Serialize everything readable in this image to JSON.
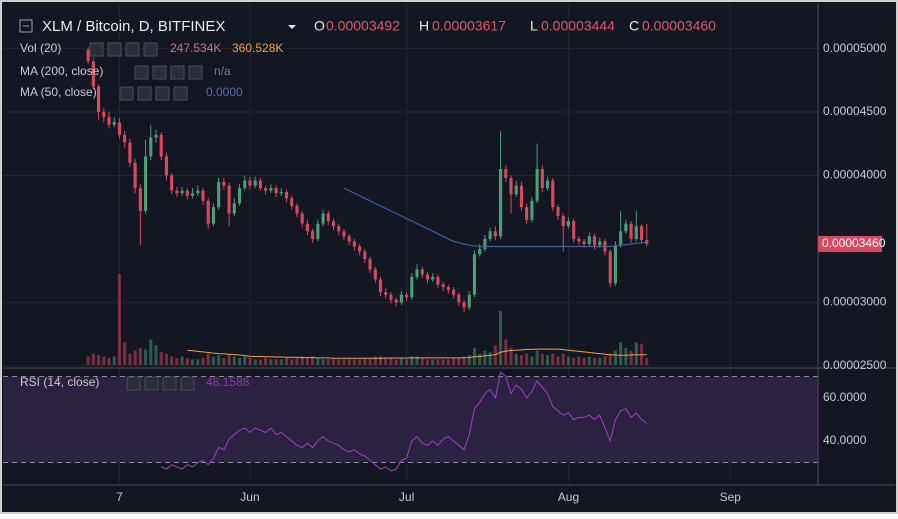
{
  "header": {
    "ohlc": [
      {
        "label": "O",
        "value": "0.00003492"
      },
      {
        "label": "H",
        "value": "0.00003617"
      },
      {
        "label": "L",
        "value": "0.00003444"
      },
      {
        "label": "C",
        "value": "0.00003460"
      }
    ]
  },
  "chart_data": [
    {
      "type": "candlestick",
      "title": "XLM / Bitcoin, D, BITFINEX",
      "up_color": "#4a9e78",
      "down_color": "#d9485e",
      "xlim": [
        -14.2,
        139.8
      ],
      "xticks": [
        {
          "value": 6,
          "label": "7"
        },
        {
          "value": 31,
          "label": "Jun"
        },
        {
          "value": 61,
          "label": "Jul"
        },
        {
          "value": 92,
          "label": "Aug"
        },
        {
          "value": 123,
          "label": "Sep"
        }
      ],
      "ylim": [
        2.49e-05,
        5.32e-05
      ],
      "yticks": [
        {
          "value": 5e-05,
          "label": "0.00005000"
        },
        {
          "value": 4.5e-05,
          "label": "0.00004500"
        },
        {
          "value": 4e-05,
          "label": "0.00004000"
        },
        {
          "value": 3e-05,
          "label": "0.00003000"
        },
        {
          "value": 2.5e-05,
          "label": "0.00002500"
        }
      ],
      "last_price_label": "0.00003460",
      "open": [
        4.99e-05,
        4.9e-05,
        4.7e-05,
        4.5e-05,
        4.46e-05,
        4.4e-05,
        4.42e-05,
        4.32e-05,
        4.26e-05,
        4.1e-05,
        3.9e-05,
        3.72e-05,
        4.15e-05,
        4.3e-05,
        4.32e-05,
        4.15e-05,
        4e-05,
        3.88e-05,
        3.86e-05,
        3.88e-05,
        3.84e-05,
        3.86e-05,
        3.88e-05,
        3.8e-05,
        3.62e-05,
        3.75e-05,
        3.95e-05,
        3.92e-05,
        3.7e-05,
        3.78e-05,
        3.9e-05,
        3.96e-05,
        3.92e-05,
        3.96e-05,
        3.9e-05,
        3.88e-05,
        3.9e-05,
        3.86e-05,
        3.87e-05,
        3.82e-05,
        3.76e-05,
        3.7e-05,
        3.62e-05,
        3.56e-05,
        3.5e-05,
        3.62e-05,
        3.7e-05,
        3.64e-05,
        3.6e-05,
        3.56e-05,
        3.52e-05,
        3.48e-05,
        3.44e-05,
        3.4e-05,
        3.34e-05,
        3.26e-05,
        3.18e-05,
        3.08e-05,
        3.06e-05,
        3.02e-05,
        3e-05,
        3.06e-05,
        3.04e-05,
        3.2e-05,
        3.26e-05,
        3.22e-05,
        3.18e-05,
        3.2e-05,
        3.14e-05,
        3.12e-05,
        3.1e-05,
        3.06e-05,
        3e-05,
        2.96e-05,
        3.06e-05,
        3.38e-05,
        3.42e-05,
        3.5e-05,
        3.56e-05,
        3.52e-05,
        4.05e-05,
        3.98e-05,
        3.85e-05,
        3.92e-05,
        3.75e-05,
        3.65e-05,
        3.8e-05,
        4.05e-05,
        3.9e-05,
        3.96e-05,
        3.75e-05,
        3.68e-05,
        3.6e-05,
        3.64e-05,
        3.5e-05,
        3.48e-05,
        3.46e-05,
        3.52e-05,
        3.45e-05,
        3.48e-05,
        3.4e-05,
        3.15e-05,
        3.45e-05,
        3.56e-05,
        3.62e-05,
        3.5e-05,
        3.6e-05,
        3.492e-05
      ],
      "high": [
        5.01e-05,
        4.93e-05,
        4.72e-05,
        4.53e-05,
        4.5e-05,
        4.46e-05,
        4.45e-05,
        4.35e-05,
        4.29e-05,
        4.13e-05,
        3.93e-05,
        4.28e-05,
        4.4e-05,
        4.36e-05,
        4.34e-05,
        4.18e-05,
        4.02e-05,
        3.91e-05,
        3.91e-05,
        3.9e-05,
        3.9e-05,
        3.92e-05,
        3.9e-05,
        3.82e-05,
        3.78e-05,
        3.98e-05,
        3.98e-05,
        3.94e-05,
        3.82e-05,
        3.93e-05,
        4e-05,
        3.99e-05,
        3.99e-05,
        3.98e-05,
        3.92e-05,
        3.93e-05,
        3.92e-05,
        3.9e-05,
        3.89e-05,
        3.84e-05,
        3.78e-05,
        3.72e-05,
        3.65e-05,
        3.58e-05,
        3.65e-05,
        3.73e-05,
        3.72e-05,
        3.66e-05,
        3.62e-05,
        3.58e-05,
        3.54e-05,
        3.5e-05,
        3.46e-05,
        3.42e-05,
        3.36e-05,
        3.28e-05,
        3.2e-05,
        3.11e-05,
        3.08e-05,
        3.04e-05,
        3.09e-05,
        3.08e-05,
        3.23e-05,
        3.3e-05,
        3.28e-05,
        3.24e-05,
        3.23e-05,
        3.22e-05,
        3.16e-05,
        3.14e-05,
        3.12e-05,
        3.08e-05,
        3.02e-05,
        3.09e-05,
        3.41e-05,
        3.46e-05,
        3.53e-05,
        3.59e-05,
        3.6e-05,
        4.35e-05,
        4.08e-05,
        4e-05,
        3.96e-05,
        3.95e-05,
        3.78e-05,
        3.83e-05,
        4.25e-05,
        4.08e-05,
        3.99e-05,
        3.98e-05,
        3.77e-05,
        3.7e-05,
        3.67e-05,
        3.66e-05,
        3.52e-05,
        3.5e-05,
        3.55e-05,
        3.54e-05,
        3.51e-05,
        3.5e-05,
        3.42e-05,
        3.48e-05,
        3.72e-05,
        3.65e-05,
        3.64e-05,
        3.72e-05,
        3.62e-05,
        3.617e-05
      ],
      "low": [
        4.88e-05,
        4.68e-05,
        4.44e-05,
        4.42e-05,
        4.37e-05,
        4.38e-05,
        4.29e-05,
        4.22e-05,
        4.07e-05,
        3.86e-05,
        3.45e-05,
        3.7e-05,
        4.12e-05,
        4.26e-05,
        4.12e-05,
        3.96e-05,
        3.85e-05,
        3.83e-05,
        3.84e-05,
        3.81e-05,
        3.82e-05,
        3.84e-05,
        3.77e-05,
        3.58e-05,
        3.6e-05,
        3.73e-05,
        3.89e-05,
        3.6e-05,
        3.68e-05,
        3.76e-05,
        3.88e-05,
        3.89e-05,
        3.9e-05,
        3.88e-05,
        3.85e-05,
        3.86e-05,
        3.83e-05,
        3.84e-05,
        3.79e-05,
        3.73e-05,
        3.67e-05,
        3.59e-05,
        3.53e-05,
        3.47e-05,
        3.48e-05,
        3.6e-05,
        3.61e-05,
        3.57e-05,
        3.53e-05,
        3.49e-05,
        3.45e-05,
        3.41e-05,
        3.37e-05,
        3.31e-05,
        3.23e-05,
        3.15e-05,
        3.05e-05,
        3.03e-05,
        2.99e-05,
        2.97e-05,
        2.98e-05,
        3.01e-05,
        3.02e-05,
        3.18e-05,
        3.19e-05,
        3.15e-05,
        3.16e-05,
        3.11e-05,
        3.09e-05,
        3.07e-05,
        3.03e-05,
        2.97e-05,
        2.92e-05,
        2.94e-05,
        3.04e-05,
        3.36e-05,
        3.4e-05,
        3.48e-05,
        3.49e-05,
        3.5e-05,
        3.95e-05,
        3.7e-05,
        3.83e-05,
        3.72e-05,
        3.62e-05,
        3.63e-05,
        3.78e-05,
        3.87e-05,
        3.88e-05,
        3.72e-05,
        3.65e-05,
        3.4e-05,
        3.58e-05,
        3.47e-05,
        3.45e-05,
        3.43e-05,
        3.44e-05,
        3.42e-05,
        3.43e-05,
        3.37e-05,
        3.12e-05,
        3.13e-05,
        3.43e-05,
        3.54e-05,
        3.47e-05,
        3.48e-05,
        3.46e-05,
        3.444e-05
      ],
      "close": [
        4.9e-05,
        4.7e-05,
        4.5e-05,
        4.46e-05,
        4.4e-05,
        4.42e-05,
        4.32e-05,
        4.26e-05,
        4.1e-05,
        3.9e-05,
        3.72e-05,
        4.15e-05,
        4.3e-05,
        4.32e-05,
        4.15e-05,
        4e-05,
        3.88e-05,
        3.86e-05,
        3.88e-05,
        3.84e-05,
        3.86e-05,
        3.88e-05,
        3.8e-05,
        3.62e-05,
        3.75e-05,
        3.95e-05,
        3.92e-05,
        3.7e-05,
        3.78e-05,
        3.9e-05,
        3.96e-05,
        3.92e-05,
        3.96e-05,
        3.9e-05,
        3.88e-05,
        3.9e-05,
        3.86e-05,
        3.87e-05,
        3.82e-05,
        3.76e-05,
        3.7e-05,
        3.62e-05,
        3.56e-05,
        3.5e-05,
        3.62e-05,
        3.7e-05,
        3.64e-05,
        3.6e-05,
        3.56e-05,
        3.52e-05,
        3.48e-05,
        3.44e-05,
        3.4e-05,
        3.34e-05,
        3.26e-05,
        3.18e-05,
        3.08e-05,
        3.06e-05,
        3.02e-05,
        3e-05,
        3.06e-05,
        3.04e-05,
        3.2e-05,
        3.26e-05,
        3.22e-05,
        3.18e-05,
        3.2e-05,
        3.14e-05,
        3.12e-05,
        3.1e-05,
        3.06e-05,
        3e-05,
        2.96e-05,
        3.06e-05,
        3.38e-05,
        3.42e-05,
        3.5e-05,
        3.56e-05,
        3.52e-05,
        4.05e-05,
        3.98e-05,
        3.85e-05,
        3.92e-05,
        3.75e-05,
        3.65e-05,
        3.8e-05,
        4.05e-05,
        3.9e-05,
        3.96e-05,
        3.75e-05,
        3.68e-05,
        3.6e-05,
        3.64e-05,
        3.5e-05,
        3.48e-05,
        3.46e-05,
        3.52e-05,
        3.45e-05,
        3.48e-05,
        3.4e-05,
        3.15e-05,
        3.45e-05,
        3.56e-05,
        3.62e-05,
        3.5e-05,
        3.6e-05,
        3.492e-05,
        3.46e-05
      ],
      "indicators": [
        {
          "name": "MA (200, close)",
          "value_label": "n/a",
          "color": "#5d7db8"
        },
        {
          "name": "MA (50, close)",
          "value_label": "0.0000",
          "color": "#3f5ea8",
          "values": [
            null,
            null,
            null,
            null,
            null,
            null,
            null,
            null,
            null,
            null,
            null,
            null,
            null,
            null,
            null,
            null,
            null,
            null,
            null,
            null,
            null,
            null,
            null,
            null,
            null,
            null,
            null,
            null,
            null,
            null,
            null,
            null,
            null,
            null,
            null,
            null,
            null,
            null,
            null,
            null,
            null,
            null,
            null,
            null,
            null,
            null,
            null,
            null,
            null,
            3.9e-05,
            3.88e-05,
            3.86e-05,
            3.84e-05,
            3.82e-05,
            3.8e-05,
            3.78e-05,
            3.76e-05,
            3.74e-05,
            3.72e-05,
            3.7e-05,
            3.68e-05,
            3.66e-05,
            3.64e-05,
            3.62e-05,
            3.6e-05,
            3.58e-05,
            3.56e-05,
            3.54e-05,
            3.52e-05,
            3.5e-05,
            3.48e-05,
            3.47e-05,
            3.46e-05,
            3.45e-05,
            3.445e-05,
            3.44e-05,
            3.44e-05,
            3.44e-05,
            3.44e-05,
            3.44e-05,
            3.44e-05,
            3.44e-05,
            3.44e-05,
            3.44e-05,
            3.44e-05,
            3.44e-05,
            3.44e-05,
            3.44e-05,
            3.44e-05,
            3.44e-05,
            3.44e-05,
            3.44e-05,
            3.44e-05,
            3.44e-05,
            3.44e-05,
            3.44e-05,
            3.44e-05,
            3.44e-05,
            3.44e-05,
            3.44e-05,
            3.44e-05,
            3.445e-05,
            3.45e-05,
            3.455e-05,
            3.46e-05,
            3.465e-05,
            3.47e-05,
            3.475e-05
          ]
        }
      ]
    },
    {
      "type": "volume",
      "name": "Vol (20)",
      "value_label": "247.534K",
      "ma_label": "360.528K",
      "ma_color": "#f0a040",
      "values": [
        300,
        400,
        350,
        300,
        250,
        300,
        3200,
        800,
        400,
        500,
        600,
        550,
        900,
        700,
        450,
        400,
        300,
        250,
        300,
        250,
        200,
        200,
        250,
        400,
        300,
        350,
        250,
        400,
        300,
        250,
        300,
        250,
        200,
        200,
        250,
        200,
        200,
        200,
        250,
        200,
        250,
        300,
        250,
        300,
        250,
        200,
        200,
        200,
        200,
        200,
        200,
        200,
        200,
        250,
        250,
        300,
        300,
        250,
        250,
        200,
        250,
        200,
        300,
        300,
        250,
        200,
        200,
        200,
        200,
        200,
        250,
        250,
        300,
        350,
        600,
        400,
        500,
        450,
        700,
        1900,
        900,
        600,
        400,
        350,
        400,
        300,
        500,
        400,
        350,
        400,
        300,
        400,
        300,
        250,
        300,
        250,
        300,
        250,
        250,
        300,
        400,
        500,
        800,
        600,
        500,
        800,
        750,
        247.534
      ],
      "ma_values": [
        null,
        null,
        null,
        null,
        null,
        null,
        null,
        null,
        null,
        null,
        null,
        null,
        null,
        null,
        null,
        null,
        null,
        null,
        null,
        520,
        500,
        480,
        460,
        440,
        420,
        400,
        390,
        380,
        370,
        350,
        330,
        310,
        300,
        300,
        290,
        290,
        280,
        280,
        270,
        270,
        270,
        260,
        260,
        260,
        250,
        250,
        250,
        240,
        240,
        240,
        240,
        240,
        240,
        240,
        240,
        240,
        240,
        245,
        245,
        245,
        245,
        245,
        250,
        250,
        250,
        250,
        250,
        250,
        250,
        250,
        250,
        250,
        255,
        260,
        290,
        300,
        320,
        340,
        360,
        450,
        490,
        510,
        520,
        530,
        550,
        550,
        560,
        560,
        560,
        560,
        560,
        540,
        520,
        500,
        480,
        460,
        440,
        420,
        400,
        380,
        360,
        350,
        340,
        340,
        350,
        360,
        360,
        360.528
      ]
    },
    {
      "type": "line",
      "name": "RSI (14, close)",
      "value_label": "48.1588",
      "color": "#a23fc9",
      "band_fill": "#2a2240",
      "ylim": [
        20.5,
        73
      ],
      "yticks": [
        {
          "value": 60,
          "label": "60.0000"
        },
        {
          "value": 40,
          "label": "40.0000"
        }
      ],
      "upper_band": 70,
      "lower_band": 30,
      "values": [
        null,
        null,
        null,
        null,
        null,
        null,
        null,
        null,
        null,
        null,
        null,
        null,
        null,
        null,
        28,
        27,
        29,
        28,
        27,
        29,
        28,
        30,
        31,
        29,
        32,
        37,
        36,
        41,
        43,
        45,
        46,
        44,
        46,
        45,
        44,
        46,
        43,
        44,
        42,
        40,
        38,
        37,
        39,
        37,
        40,
        42,
        40,
        39,
        38,
        36,
        35,
        36,
        34,
        33,
        31,
        29,
        27,
        28,
        26,
        27,
        31,
        32,
        40,
        42,
        39,
        38,
        40,
        38,
        41,
        42,
        40,
        38,
        36,
        43,
        55,
        58,
        62,
        64,
        60,
        72,
        70,
        62,
        66,
        64,
        60,
        63,
        68,
        65,
        62,
        56,
        54,
        52,
        53,
        50,
        51,
        51,
        52,
        50,
        52,
        46,
        40,
        50,
        54,
        55,
        51,
        53,
        50,
        48.1588
      ]
    }
  ]
}
